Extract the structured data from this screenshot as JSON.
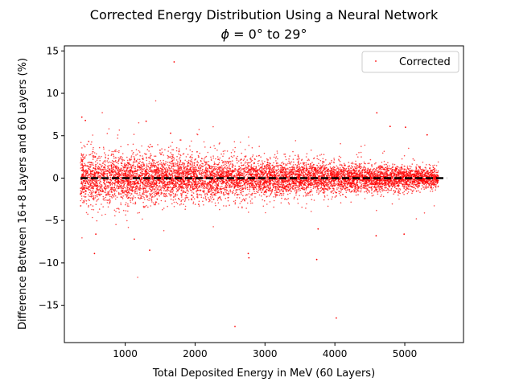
{
  "chart_data": {
    "type": "scatter",
    "title": "Corrected Energy Distribution Using a Neural Network",
    "subtitle_prefix": "ϕ",
    "subtitle_rest": " = 0° to 29°",
    "xlabel": "Total Deposited Energy in MeV (60 Layers)",
    "ylabel": "Difference Between 16+8 Layers and 60 Layers (%)",
    "xlim": [
      130,
      5840
    ],
    "ylim": [
      -19.4,
      15.6
    ],
    "xticks": [
      1000,
      2000,
      3000,
      4000,
      5000
    ],
    "yticks": [
      -15,
      -10,
      -5,
      0,
      5,
      10,
      15
    ],
    "grid": false,
    "legend": {
      "position": "top-right",
      "entries": [
        "Corrected"
      ]
    },
    "colors": {
      "points": "#ff0000",
      "reference_line": "#000000"
    },
    "reference_line": {
      "y": 0,
      "x_range": [
        360,
        5600
      ],
      "style": "dashed"
    },
    "series": [
      {
        "name": "Corrected",
        "band": {
          "x_range": [
            360,
            5480
          ],
          "typical_spread_pct": 1.6,
          "spread_at_low_energy_pct": 2.4,
          "spread_at_high_energy_pct": 0.9,
          "n_points": 9000
        },
        "outliers": [
          {
            "x": 1700,
            "y": 13.7
          },
          {
            "x": 4600,
            "y": 7.7
          },
          {
            "x": 1300,
            "y": 6.7
          },
          {
            "x": 4790,
            "y": 6.1
          },
          {
            "x": 5010,
            "y": 6.0
          },
          {
            "x": 5320,
            "y": 5.1
          },
          {
            "x": 1650,
            "y": 5.3
          },
          {
            "x": 2760,
            "y": -8.9
          },
          {
            "x": 2770,
            "y": -9.4
          },
          {
            "x": 3740,
            "y": -9.6
          },
          {
            "x": 1350,
            "y": -8.5
          },
          {
            "x": 560,
            "y": -8.9
          },
          {
            "x": 1130,
            "y": -7.2
          },
          {
            "x": 4590,
            "y": -6.8
          },
          {
            "x": 4990,
            "y": -6.6
          },
          {
            "x": 3760,
            "y": -6.0
          },
          {
            "x": 2570,
            "y": -17.5
          },
          {
            "x": 4020,
            "y": -16.5
          },
          {
            "x": 580,
            "y": -6.6
          },
          {
            "x": 380,
            "y": 7.2
          },
          {
            "x": 430,
            "y": 6.8
          }
        ]
      }
    ]
  }
}
